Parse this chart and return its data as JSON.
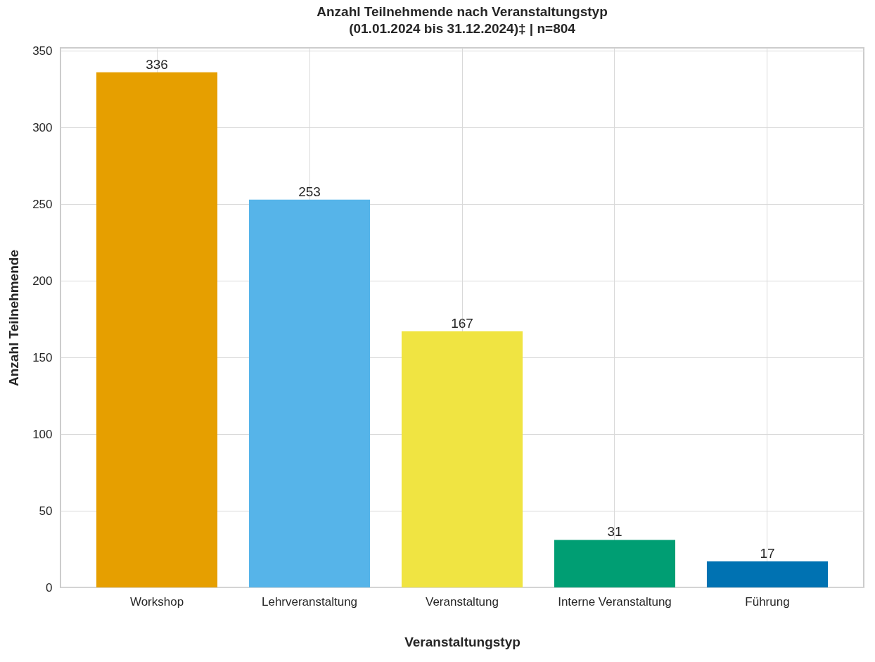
{
  "chart_data": {
    "type": "bar",
    "title": [
      "Anzahl Teilnehmende nach Veranstaltungstyp",
      "(01.01.2024 bis 31.12.2024)‡ | n=804"
    ],
    "xlabel": "Veranstaltungstyp",
    "ylabel": "Anzahl Teilnehmende",
    "categories": [
      "Workshop",
      "Lehrveranstaltung",
      "Veranstaltung",
      "Interne Veranstaltung",
      "Führung"
    ],
    "values": [
      336,
      253,
      167,
      31,
      17
    ],
    "colors": [
      "#e69f00",
      "#56b4e9",
      "#f0e442",
      "#009e73",
      "#0072b2"
    ],
    "ylim": [
      0,
      352
    ],
    "yticks": [
      0,
      50,
      100,
      150,
      200,
      250,
      300,
      350
    ],
    "grid": true,
    "data_labels": true
  }
}
